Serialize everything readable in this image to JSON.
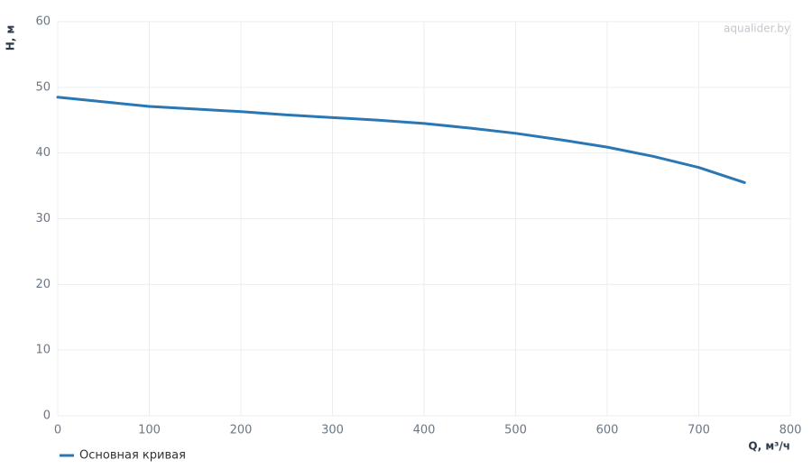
{
  "chart_data": {
    "type": "line",
    "watermark": "aqualider.by",
    "x_label": "Q, м³/ч",
    "y_label": "H, м",
    "x": [
      0,
      50,
      100,
      150,
      200,
      250,
      300,
      350,
      400,
      450,
      500,
      550,
      600,
      650,
      700,
      750
    ],
    "series": [
      {
        "name": "Основная кривая",
        "color": "#2a77b4",
        "values": [
          48.5,
          47.8,
          47.1,
          46.7,
          46.3,
          45.8,
          45.4,
          45.0,
          44.5,
          43.8,
          43.0,
          42.0,
          40.9,
          39.5,
          37.8,
          35.5
        ]
      }
    ],
    "xlim": [
      0,
      800
    ],
    "xticks": [
      0,
      100,
      200,
      300,
      400,
      500,
      600,
      700,
      800
    ],
    "ylim": [
      0,
      60
    ],
    "yticks": [
      0,
      10,
      20,
      30,
      40,
      50,
      60
    ],
    "grid": true,
    "legend": "bottom-left"
  }
}
